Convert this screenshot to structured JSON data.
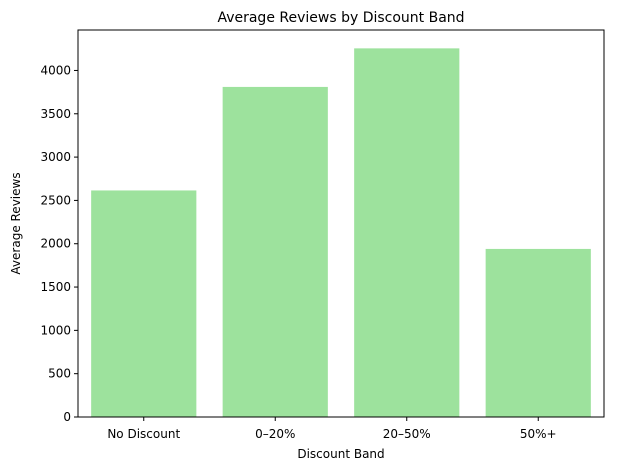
{
  "chart_data": {
    "type": "bar",
    "title": "Average Reviews by Discount Band",
    "xlabel": "Discount Band",
    "ylabel": "Average Reviews",
    "categories": [
      "No Discount",
      "0–20%",
      "20–50%",
      "50%+"
    ],
    "values": [
      2615,
      3810,
      4255,
      1940
    ],
    "ylim": [
      0,
      4467
    ],
    "yticks": [
      0,
      500,
      1000,
      1500,
      2000,
      2500,
      3000,
      3500,
      4000
    ],
    "bar_color": "#9de29d",
    "grid": false,
    "legend": "none"
  }
}
